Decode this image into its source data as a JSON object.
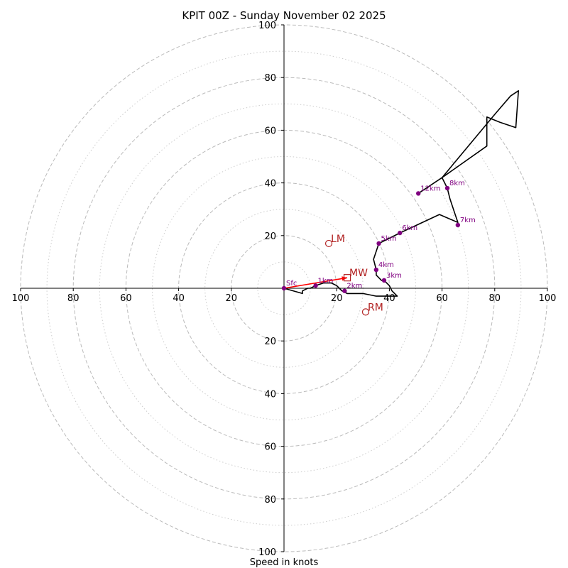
{
  "chart_data": {
    "type": "hodograph",
    "title": "KPIT 00Z - Sunday November 02 2025",
    "xlabel": "Speed in knots",
    "ylabel": "",
    "xlim": [
      -100,
      100
    ],
    "ylim": [
      -100,
      100
    ],
    "grid": true,
    "major_rings": [
      20,
      40,
      60,
      80,
      100
    ],
    "minor_rings": [
      10,
      30,
      50,
      70,
      90
    ],
    "x_tick_labels": [
      "100",
      "80",
      "60",
      "40",
      "20",
      "20",
      "40",
      "60",
      "80",
      "100"
    ],
    "y_tick_labels": [
      "100",
      "80",
      "60",
      "40",
      "20",
      "20",
      "40",
      "60",
      "80",
      "100"
    ],
    "trace": [
      [
        0,
        0
      ],
      [
        7,
        -2
      ],
      [
        7,
        -1
      ],
      [
        9,
        0
      ],
      [
        10,
        0
      ],
      [
        12,
        1
      ],
      [
        15,
        2
      ],
      [
        18,
        2
      ],
      [
        20,
        1
      ],
      [
        21,
        0
      ],
      [
        22,
        -1
      ],
      [
        24,
        -2
      ],
      [
        30,
        -2
      ],
      [
        35,
        -3
      ],
      [
        40,
        -3
      ],
      [
        42,
        -3
      ],
      [
        43,
        -3
      ],
      [
        41,
        -1
      ],
      [
        40,
        1
      ],
      [
        38,
        3
      ],
      [
        37,
        3
      ],
      [
        35,
        5
      ],
      [
        35,
        7
      ],
      [
        34,
        11
      ],
      [
        36,
        17
      ],
      [
        44,
        21
      ],
      [
        59,
        28
      ],
      [
        66,
        25
      ],
      [
        65,
        28
      ],
      [
        63,
        34
      ],
      [
        62,
        38
      ],
      [
        60,
        42
      ],
      [
        77,
        54
      ],
      [
        77,
        65
      ],
      [
        82,
        63
      ],
      [
        88,
        61
      ],
      [
        89,
        75
      ],
      [
        86,
        73
      ],
      [
        80,
        66
      ],
      [
        60,
        42
      ],
      [
        51,
        36
      ]
    ],
    "height_markers": [
      {
        "label": "Sfc",
        "u": 0,
        "v": 0
      },
      {
        "label": "1km",
        "u": 12,
        "v": 1
      },
      {
        "label": "2km",
        "u": 23,
        "v": -1
      },
      {
        "label": "3km",
        "u": 38,
        "v": 3
      },
      {
        "label": "4km",
        "u": 35,
        "v": 7
      },
      {
        "label": "5km",
        "u": 36,
        "v": 17
      },
      {
        "label": "6km",
        "u": 44,
        "v": 21
      },
      {
        "label": "7km",
        "u": 66,
        "v": 24
      },
      {
        "label": "8km",
        "u": 62,
        "v": 38
      },
      {
        "label": "12km",
        "u": 51,
        "v": 36
      }
    ],
    "storm_motion": [
      {
        "label": "LM",
        "u": 17,
        "v": 17,
        "marker": "circle"
      },
      {
        "label": "MW",
        "u": 24,
        "v": 4,
        "marker": "square"
      },
      {
        "label": "RM",
        "u": 31,
        "v": -9,
        "marker": "circle"
      }
    ],
    "shear_vector": {
      "from": [
        0,
        0
      ],
      "to": [
        24,
        4
      ]
    },
    "colors": {
      "trace": "#000000",
      "height_marker": "#800080",
      "storm_motion": "#b22222",
      "shear_vector": "#ff0000",
      "grid": "#bbbbbb"
    }
  }
}
